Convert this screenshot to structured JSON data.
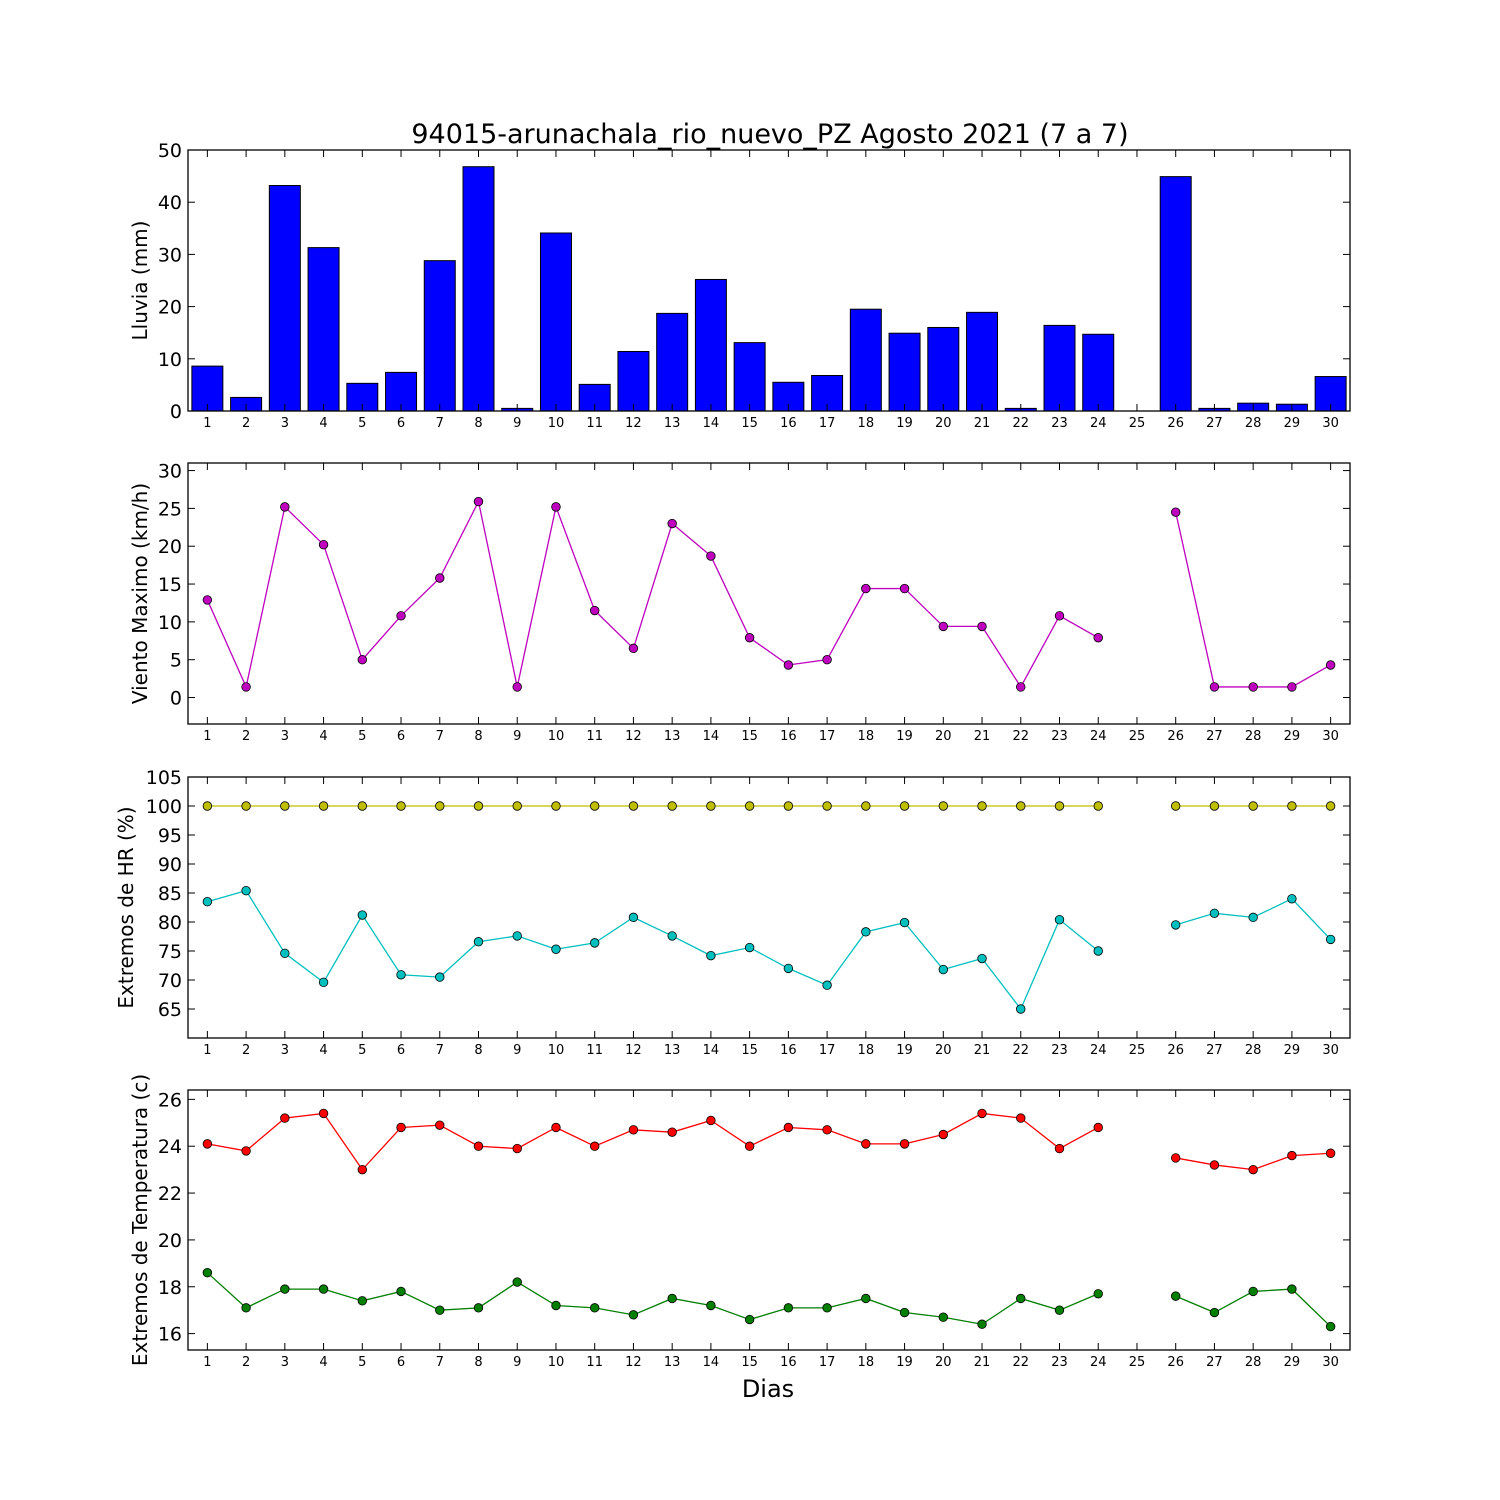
{
  "chart_data": [
    {
      "type": "bar",
      "title": "94015-arunachala_rio_nuevo_PZ Agosto 2021  (7 a 7)",
      "ylabel": "Lluvia (mm)",
      "xlabel": "",
      "categories": [
        "1",
        "2",
        "3",
        "4",
        "5",
        "6",
        "7",
        "8",
        "9",
        "10",
        "11",
        "12",
        "13",
        "14",
        "15",
        "16",
        "17",
        "18",
        "19",
        "20",
        "21",
        "22",
        "23",
        "24",
        "25",
        "26",
        "27",
        "28",
        "29",
        "30"
      ],
      "values": [
        8.6,
        2.6,
        43.2,
        31.3,
        5.3,
        7.4,
        28.8,
        46.8,
        0.5,
        34.1,
        5.1,
        11.4,
        18.7,
        25.2,
        13.1,
        5.5,
        6.8,
        19.5,
        14.9,
        16.0,
        18.9,
        0.5,
        16.4,
        14.7,
        0,
        44.9,
        0.5,
        1.5,
        1.3,
        6.6
      ],
      "ylim": [
        0,
        50
      ],
      "yticks": [
        "0",
        "10",
        "20",
        "30",
        "40",
        "50"
      ],
      "color": "#0000ff"
    },
    {
      "type": "line",
      "ylabel": "Viento Maximo (km/h)",
      "categories": [
        "1",
        "2",
        "3",
        "4",
        "5",
        "6",
        "7",
        "8",
        "9",
        "10",
        "11",
        "12",
        "13",
        "14",
        "15",
        "16",
        "17",
        "18",
        "19",
        "20",
        "21",
        "22",
        "23",
        "24",
        "25",
        "26",
        "27",
        "28",
        "29",
        "30"
      ],
      "series": [
        {
          "color": "#bf00bf",
          "values": [
            12.9,
            1.4,
            25.2,
            20.2,
            5.0,
            10.8,
            15.8,
            25.9,
            1.4,
            25.2,
            11.5,
            6.5,
            23.0,
            18.7,
            7.9,
            4.3,
            5.0,
            14.4,
            14.4,
            9.4,
            9.4,
            1.4,
            10.8,
            7.9,
            null,
            24.5,
            1.4,
            1.4,
            1.4,
            4.3
          ]
        }
      ],
      "ylim": [
        -3.5,
        31
      ],
      "yticks": [
        "0",
        "5",
        "10",
        "15",
        "20",
        "25",
        "30"
      ]
    },
    {
      "type": "line",
      "ylabel": "Extremos de HR (%)",
      "categories": [
        "1",
        "2",
        "3",
        "4",
        "5",
        "6",
        "7",
        "8",
        "9",
        "10",
        "11",
        "12",
        "13",
        "14",
        "15",
        "16",
        "17",
        "18",
        "19",
        "20",
        "21",
        "22",
        "23",
        "24",
        "25",
        "26",
        "27",
        "28",
        "29",
        "30"
      ],
      "series": [
        {
          "color": "#bfbf00",
          "values": [
            100,
            100,
            100,
            100,
            100,
            100,
            100,
            100,
            100,
            100,
            100,
            100,
            100,
            100,
            100,
            100,
            100,
            100,
            100,
            100,
            100,
            100,
            100,
            100,
            null,
            100,
            100,
            100,
            100,
            100
          ]
        },
        {
          "color": "#00bfbf",
          "values": [
            83.5,
            85.4,
            74.6,
            69.6,
            81.2,
            70.9,
            70.5,
            76.6,
            77.6,
            75.3,
            76.4,
            80.8,
            77.6,
            74.2,
            75.6,
            72.0,
            69.1,
            78.3,
            79.9,
            71.8,
            73.7,
            65.0,
            80.4,
            75.0,
            null,
            79.5,
            81.5,
            80.8,
            84.0,
            77.0
          ]
        }
      ],
      "ylim": [
        60,
        105
      ],
      "yticks": [
        "65",
        "70",
        "75",
        "80",
        "85",
        "90",
        "95",
        "100",
        "105"
      ]
    },
    {
      "type": "line",
      "ylabel": "Extremos de Temperatura (c)",
      "xlabel": "Dias",
      "categories": [
        "1",
        "2",
        "3",
        "4",
        "5",
        "6",
        "7",
        "8",
        "9",
        "10",
        "11",
        "12",
        "13",
        "14",
        "15",
        "16",
        "17",
        "18",
        "19",
        "20",
        "21",
        "22",
        "23",
        "24",
        "25",
        "26",
        "27",
        "28",
        "29",
        "30"
      ],
      "series": [
        {
          "color": "#ff0000",
          "values": [
            24.1,
            23.8,
            25.2,
            25.4,
            23.0,
            24.8,
            24.9,
            24.0,
            23.9,
            24.8,
            24.0,
            24.7,
            24.6,
            25.1,
            24.0,
            24.8,
            24.7,
            24.1,
            24.1,
            24.5,
            25.4,
            25.2,
            23.9,
            24.8,
            null,
            23.5,
            23.2,
            23.0,
            23.6,
            23.7
          ]
        },
        {
          "color": "#007f00",
          "values": [
            18.6,
            17.1,
            17.9,
            17.9,
            17.4,
            17.8,
            17.0,
            17.1,
            18.2,
            17.2,
            17.1,
            16.8,
            17.5,
            17.2,
            16.6,
            17.1,
            17.1,
            17.5,
            16.9,
            16.7,
            16.4,
            17.5,
            17.0,
            17.7,
            null,
            17.6,
            16.9,
            17.8,
            17.9,
            16.3
          ]
        }
      ],
      "ylim": [
        15.3,
        26.4
      ],
      "yticks": [
        "16",
        "18",
        "20",
        "22",
        "24",
        "26"
      ]
    }
  ]
}
